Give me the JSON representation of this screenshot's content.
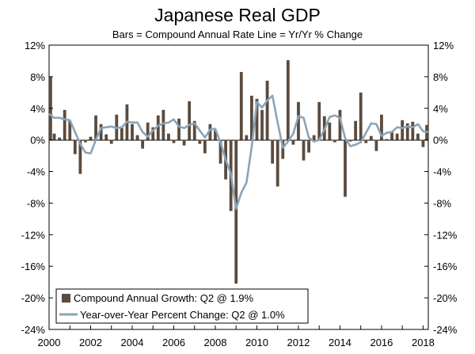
{
  "chart_data": {
    "type": "bar",
    "title": "Japanese Real GDP",
    "subtitle": "Bars = Compound Annual Rate     Line = Yr/Yr % Change",
    "ylim": [
      -24,
      12
    ],
    "y_ticks": [
      "12%",
      "8%",
      "4%",
      "0%",
      "-4%",
      "-8%",
      "-12%",
      "-16%",
      "-20%",
      "-24%"
    ],
    "x_tick_labels": [
      "2000",
      "2002",
      "2004",
      "2006",
      "2008",
      "2010",
      "2012",
      "2014",
      "2016",
      "2018"
    ],
    "grid": false,
    "legend_position": "bottom-left",
    "colors": {
      "bars": "#5b4b3e",
      "line": "#8aa4b8"
    },
    "x_quarters": [
      "2000Q1",
      "2000Q2",
      "2000Q3",
      "2000Q4",
      "2001Q1",
      "2001Q2",
      "2001Q3",
      "2001Q4",
      "2002Q1",
      "2002Q2",
      "2002Q3",
      "2002Q4",
      "2003Q1",
      "2003Q2",
      "2003Q3",
      "2003Q4",
      "2004Q1",
      "2004Q2",
      "2004Q3",
      "2004Q4",
      "2005Q1",
      "2005Q2",
      "2005Q3",
      "2005Q4",
      "2006Q1",
      "2006Q2",
      "2006Q3",
      "2006Q4",
      "2007Q1",
      "2007Q2",
      "2007Q3",
      "2007Q4",
      "2008Q1",
      "2008Q2",
      "2008Q3",
      "2008Q4",
      "2009Q1",
      "2009Q2",
      "2009Q3",
      "2009Q4",
      "2010Q1",
      "2010Q2",
      "2010Q3",
      "2010Q4",
      "2011Q1",
      "2011Q2",
      "2011Q3",
      "2011Q4",
      "2012Q1",
      "2012Q2",
      "2012Q3",
      "2012Q4",
      "2013Q1",
      "2013Q2",
      "2013Q3",
      "2013Q4",
      "2014Q1",
      "2014Q2",
      "2014Q3",
      "2014Q4",
      "2015Q1",
      "2015Q2",
      "2015Q3",
      "2015Q4",
      "2016Q1",
      "2016Q2",
      "2016Q3",
      "2016Q4",
      "2017Q1",
      "2017Q2",
      "2017Q3",
      "2017Q4",
      "2018Q1",
      "2018Q2"
    ],
    "series": [
      {
        "name": "Compound Annual Growth: Q2 @ 1.9%",
        "kind": "bar",
        "values": [
          8.0,
          0.8,
          0.3,
          3.8,
          2.4,
          -1.8,
          -4.3,
          -0.3,
          0.4,
          3.1,
          2.0,
          0.7,
          -0.5,
          3.2,
          1.5,
          4.5,
          2.0,
          0.6,
          -1.1,
          2.2,
          1.6,
          3.1,
          3.8,
          0.8,
          -0.4,
          2.7,
          -0.7,
          4.9,
          2.4,
          -0.5,
          -1.7,
          2.0,
          1.2,
          -3.0,
          -5.0,
          -9.0,
          -18.2,
          8.6,
          0.6,
          5.6,
          5.2,
          3.8,
          7.5,
          -3.0,
          -5.9,
          -2.4,
          10.1,
          -0.6,
          4.8,
          -2.6,
          -1.6,
          0.6,
          4.8,
          3.0,
          2.2,
          -0.3,
          3.8,
          -7.2,
          -0.2,
          2.4,
          6.0,
          -0.4,
          0.5,
          -1.4,
          3.2,
          0.1,
          1.0,
          0.8,
          2.5,
          2.1,
          2.3,
          0.8,
          -0.9,
          1.9
        ]
      },
      {
        "name": "Year-over-Year Percent Change: Q2 @ 1.0%",
        "kind": "line",
        "values": [
          3.3,
          2.8,
          2.8,
          2.6,
          2.5,
          1.0,
          -0.5,
          -1.6,
          -1.7,
          0.0,
          1.5,
          1.6,
          1.7,
          1.5,
          1.6,
          2.3,
          2.2,
          2.2,
          1.0,
          0.4,
          1.2,
          1.8,
          2.1,
          2.2,
          2.6,
          1.7,
          1.5,
          1.9,
          2.1,
          1.2,
          0.3,
          1.3,
          1.4,
          -0.3,
          -2.5,
          -4.3,
          -8.7,
          -6.7,
          -5.4,
          -0.9,
          4.8,
          4.1,
          5.0,
          5.6,
          2.2,
          -1.0,
          -0.2,
          0.8,
          3.0,
          2.8,
          0.3,
          -0.2,
          0.0,
          1.3,
          2.9,
          3.1,
          2.8,
          0.2,
          -0.8,
          -0.6,
          -0.3,
          0.9,
          2.1,
          2.0,
          0.5,
          0.9,
          1.0,
          1.6,
          1.5,
          1.7,
          1.6,
          2.0,
          1.1,
          1.0
        ]
      }
    ]
  }
}
